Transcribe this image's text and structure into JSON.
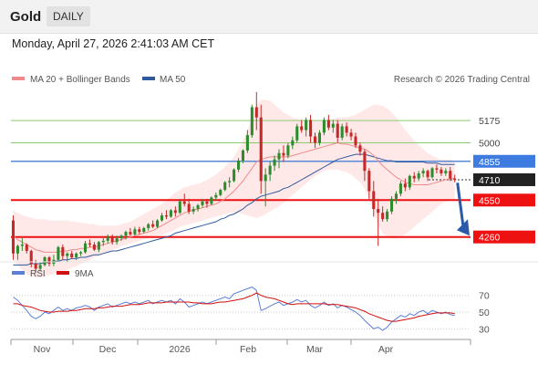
{
  "header": {
    "instrument": "Gold",
    "period": "DAILY"
  },
  "datetime": "Monday, April 27, 2026 2:41:03 AM CET",
  "legend": {
    "ma20": "MA 20 + Bollinger Bands",
    "ma50": "MA 50",
    "rsi": "RSI",
    "ma9": "9MA",
    "credit": "Research © 2026 Trading Central"
  },
  "colors": {
    "ma20": "#f08a8a",
    "ma50": "#2f5a9e",
    "bands": "#fde0e0",
    "up": "#2e8b2e",
    "down": "#c62828",
    "rsi": "#5b7fd6",
    "rsi_ma": "#d01010",
    "target_line": "#8fc96e",
    "support_line": "#ee1111",
    "current_line": "#5a8ad6",
    "arrow": "#2a5aa8"
  },
  "chart_data": {
    "type": "candlestick",
    "x_tick_labels": [
      "Nov",
      "Dec",
      "2026",
      "Feb",
      "Mar",
      "Apr"
    ],
    "price_range": [
      4100,
      5420
    ],
    "levels": [
      {
        "label": "5175",
        "value": 5175,
        "style": "target"
      },
      {
        "label": "5000",
        "value": 5000,
        "style": "target"
      },
      {
        "label": "4855",
        "value": 4855,
        "style": "current"
      },
      {
        "label": "4710",
        "value": 4710,
        "style": "last"
      },
      {
        "label": "4550",
        "value": 4550,
        "style": "support"
      },
      {
        "label": "4260",
        "value": 4260,
        "style": "support"
      }
    ],
    "forecast_arrow": {
      "from": 4700,
      "to": 4270
    },
    "ohlc": [
      [
        4390,
        4430,
        4080,
        4130
      ],
      [
        4130,
        4200,
        4080,
        4190
      ],
      [
        4190,
        4250,
        4150,
        4200
      ],
      [
        4200,
        4210,
        4130,
        4150
      ],
      [
        4150,
        4160,
        4020,
        4050
      ],
      [
        4050,
        4080,
        3980,
        4010
      ],
      [
        4010,
        4060,
        3990,
        4040
      ],
      [
        4040,
        4110,
        4030,
        4100
      ],
      [
        4100,
        4110,
        4030,
        4050
      ],
      [
        4050,
        4120,
        4030,
        4080
      ],
      [
        4080,
        4190,
        4070,
        4180
      ],
      [
        4180,
        4200,
        4080,
        4110
      ],
      [
        4110,
        4140,
        4060,
        4130
      ],
      [
        4130,
        4150,
        4090,
        4100
      ],
      [
        4100,
        4140,
        4080,
        4130
      ],
      [
        4130,
        4150,
        4110,
        4140
      ],
      [
        4140,
        4230,
        4130,
        4210
      ],
      [
        4210,
        4240,
        4180,
        4200
      ],
      [
        4200,
        4220,
        4150,
        4160
      ],
      [
        4160,
        4230,
        4140,
        4220
      ],
      [
        4220,
        4250,
        4190,
        4230
      ],
      [
        4230,
        4280,
        4210,
        4260
      ],
      [
        4260,
        4280,
        4200,
        4220
      ],
      [
        4220,
        4270,
        4200,
        4250
      ],
      [
        4250,
        4280,
        4230,
        4270
      ],
      [
        4270,
        4310,
        4240,
        4300
      ],
      [
        4300,
        4330,
        4270,
        4280
      ],
      [
        4280,
        4340,
        4270,
        4320
      ],
      [
        4320,
        4340,
        4280,
        4300
      ],
      [
        4300,
        4340,
        4290,
        4330
      ],
      [
        4330,
        4370,
        4310,
        4360
      ],
      [
        4360,
        4390,
        4330,
        4340
      ],
      [
        4340,
        4400,
        4330,
        4390
      ],
      [
        4390,
        4450,
        4380,
        4430
      ],
      [
        4430,
        4470,
        4400,
        4420
      ],
      [
        4420,
        4480,
        4410,
        4470
      ],
      [
        4470,
        4500,
        4420,
        4450
      ],
      [
        4450,
        4560,
        4440,
        4540
      ],
      [
        4540,
        4600,
        4500,
        4520
      ],
      [
        4520,
        4560,
        4440,
        4460
      ],
      [
        4460,
        4500,
        4440,
        4480
      ],
      [
        4480,
        4520,
        4460,
        4510
      ],
      [
        4510,
        4560,
        4490,
        4540
      ],
      [
        4540,
        4560,
        4490,
        4520
      ],
      [
        4520,
        4580,
        4510,
        4570
      ],
      [
        4570,
        4610,
        4550,
        4590
      ],
      [
        4590,
        4640,
        4580,
        4630
      ],
      [
        4630,
        4700,
        4620,
        4690
      ],
      [
        4690,
        4730,
        4650,
        4700
      ],
      [
        4700,
        4800,
        4690,
        4790
      ],
      [
        4790,
        4880,
        4770,
        4860
      ],
      [
        4860,
        4950,
        4840,
        4940
      ],
      [
        4940,
        5100,
        4920,
        5060
      ],
      [
        5060,
        5300,
        5040,
        5280
      ],
      [
        5280,
        5400,
        5100,
        5200
      ],
      [
        5200,
        5300,
        4600,
        4700
      ],
      [
        4700,
        4800,
        4500,
        4750
      ],
      [
        4750,
        4850,
        4700,
        4820
      ],
      [
        4820,
        4900,
        4780,
        4870
      ],
      [
        4870,
        4950,
        4800,
        4920
      ],
      [
        4920,
        4980,
        4850,
        4900
      ],
      [
        4900,
        5000,
        4880,
        4980
      ],
      [
        4980,
        5050,
        4950,
        5020
      ],
      [
        5020,
        5150,
        5000,
        5130
      ],
      [
        5130,
        5180,
        5080,
        5100
      ],
      [
        5100,
        5200,
        5050,
        5180
      ],
      [
        5180,
        5220,
        5000,
        5050
      ],
      [
        5050,
        5080,
        4960,
        5000
      ],
      [
        5000,
        5100,
        4980,
        5080
      ],
      [
        5080,
        5200,
        5060,
        5180
      ],
      [
        5180,
        5220,
        5100,
        5120
      ],
      [
        5120,
        5180,
        5080,
        5150
      ],
      [
        5150,
        5180,
        5000,
        5040
      ],
      [
        5040,
        5150,
        5020,
        5130
      ],
      [
        5130,
        5160,
        5050,
        5080
      ],
      [
        5080,
        5110,
        5020,
        5050
      ],
      [
        5050,
        5080,
        4960,
        4980
      ],
      [
        4980,
        5000,
        4900,
        4930
      ],
      [
        4930,
        4950,
        4700,
        4780
      ],
      [
        4780,
        4800,
        4560,
        4620
      ],
      [
        4620,
        4700,
        4420,
        4480
      ],
      [
        4480,
        4560,
        4190,
        4450
      ],
      [
        4450,
        4500,
        4380,
        4400
      ],
      [
        4400,
        4480,
        4380,
        4460
      ],
      [
        4460,
        4580,
        4440,
        4560
      ],
      [
        4560,
        4620,
        4520,
        4600
      ],
      [
        4600,
        4700,
        4580,
        4680
      ],
      [
        4680,
        4720,
        4620,
        4650
      ],
      [
        4650,
        4750,
        4630,
        4740
      ],
      [
        4740,
        4770,
        4690,
        4720
      ],
      [
        4720,
        4780,
        4700,
        4760
      ],
      [
        4760,
        4800,
        4730,
        4780
      ],
      [
        4780,
        4790,
        4700,
        4730
      ],
      [
        4730,
        4810,
        4720,
        4800
      ],
      [
        4800,
        4830,
        4760,
        4790
      ],
      [
        4790,
        4810,
        4740,
        4760
      ],
      [
        4760,
        4800,
        4740,
        4780
      ],
      [
        4780,
        4810,
        4700,
        4720
      ],
      [
        4720,
        4750,
        4690,
        4710
      ]
    ],
    "bb_upper": [
      4470,
      4450,
      4430,
      4420,
      4410,
      4400,
      4400,
      4400,
      4390,
      4390,
      4390,
      4390,
      4390,
      4380,
      4380,
      4370,
      4370,
      4360,
      4360,
      4350,
      4350,
      4350,
      4350,
      4350,
      4360,
      4370,
      4380,
      4400,
      4420,
      4440,
      4460,
      4480,
      4500,
      4520,
      4550,
      4580,
      4610,
      4630,
      4650,
      4660,
      4670,
      4680,
      4690,
      4710,
      4730,
      4750,
      4780,
      4810,
      4850,
      4890,
      4950,
      5020,
      5100,
      5200,
      5300,
      5340,
      5340,
      5330,
      5300,
      5270,
      5240,
      5220,
      5200,
      5190,
      5180,
      5180,
      5170,
      5170,
      5170,
      5170,
      5180,
      5190,
      5200,
      5200,
      5200,
      5210,
      5220,
      5240,
      5260,
      5280,
      5300,
      5300,
      5290,
      5270,
      5240,
      5200,
      5150,
      5100,
      5060,
      5020,
      4980,
      4950,
      4920,
      4900,
      4880,
      4870,
      4870,
      4870,
      4860
    ],
    "bb_lower": [
      4080,
      4040,
      4000,
      3970,
      3950,
      3940,
      3940,
      3950,
      3960,
      3970,
      3980,
      3990,
      4000,
      4020,
      4030,
      4050,
      4060,
      4080,
      4100,
      4110,
      4130,
      4140,
      4160,
      4170,
      4190,
      4200,
      4210,
      4220,
      4230,
      4240,
      4250,
      4260,
      4270,
      4280,
      4290,
      4300,
      4320,
      4340,
      4350,
      4360,
      4370,
      4380,
      4390,
      4400,
      4410,
      4420,
      4430,
      4440,
      4450,
      4450,
      4450,
      4440,
      4430,
      4420,
      4410,
      4420,
      4440,
      4460,
      4480,
      4500,
      4530,
      4560,
      4590,
      4620,
      4650,
      4680,
      4710,
      4740,
      4760,
      4780,
      4790,
      4790,
      4790,
      4780,
      4770,
      4750,
      4720,
      4690,
      4640,
      4560,
      4460,
      4350,
      4290,
      4260,
      4250,
      4250,
      4260,
      4280,
      4310,
      4340,
      4370,
      4400,
      4430,
      4460,
      4490,
      4520,
      4540,
      4550,
      4560
    ],
    "ma20": [
      4270,
      4240,
      4220,
      4200,
      4180,
      4160,
      4150,
      4140,
      4140,
      4140,
      4140,
      4150,
      4150,
      4160,
      4160,
      4170,
      4170,
      4180,
      4180,
      4190,
      4200,
      4210,
      4220,
      4230,
      4240,
      4250,
      4260,
      4270,
      4280,
      4290,
      4300,
      4310,
      4330,
      4350,
      4370,
      4390,
      4410,
      4430,
      4450,
      4460,
      4470,
      4480,
      4490,
      4500,
      4510,
      4520,
      4540,
      4560,
      4590,
      4620,
      4660,
      4700,
      4750,
      4800,
      4850,
      4870,
      4880,
      4890,
      4890,
      4890,
      4890,
      4890,
      4900,
      4910,
      4920,
      4930,
      4940,
      4950,
      4960,
      4970,
      4980,
      4990,
      5000,
      4990,
      4990,
      4980,
      4970,
      4960,
      4950,
      4930,
      4900,
      4860,
      4820,
      4790,
      4760,
      4730,
      4710,
      4690,
      4680,
      4670,
      4670,
      4670,
      4670,
      4680,
      4690,
      4700,
      4710,
      4720,
      4720
    ],
    "ma50": [
      4040,
      4040,
      4040,
      4040,
      4050,
      4050,
      4050,
      4060,
      4060,
      4070,
      4070,
      4080,
      4080,
      4090,
      4090,
      4100,
      4100,
      4110,
      4120,
      4120,
      4130,
      4140,
      4150,
      4150,
      4160,
      4170,
      4180,
      4190,
      4200,
      4210,
      4220,
      4230,
      4240,
      4250,
      4260,
      4270,
      4290,
      4300,
      4310,
      4320,
      4330,
      4340,
      4350,
      4360,
      4370,
      4380,
      4400,
      4410,
      4430,
      4440,
      4460,
      4480,
      4510,
      4530,
      4560,
      4580,
      4590,
      4600,
      4610,
      4620,
      4640,
      4650,
      4670,
      4690,
      4710,
      4730,
      4750,
      4770,
      4790,
      4810,
      4830,
      4850,
      4870,
      4880,
      4890,
      4900,
      4910,
      4910,
      4910,
      4900,
      4890,
      4880,
      4870,
      4860,
      4860,
      4850,
      4850,
      4850,
      4850,
      4850,
      4850,
      4850,
      4840,
      4840,
      4840,
      4830,
      4830,
      4830,
      4830
    ],
    "rsi": {
      "ticks": [
        70,
        50,
        30
      ],
      "range": [
        15,
        85
      ],
      "rsi": [
        68,
        64,
        58,
        52,
        45,
        42,
        45,
        50,
        48,
        52,
        56,
        52,
        54,
        52,
        55,
        56,
        58,
        56,
        52,
        56,
        58,
        60,
        56,
        58,
        60,
        62,
        60,
        62,
        60,
        62,
        64,
        60,
        62,
        64,
        62,
        64,
        60,
        66,
        62,
        56,
        58,
        60,
        62,
        60,
        62,
        64,
        66,
        68,
        66,
        72,
        74,
        76,
        78,
        80,
        76,
        52,
        54,
        57,
        60,
        62,
        58,
        60,
        62,
        65,
        62,
        64,
        58,
        55,
        58,
        62,
        58,
        60,
        55,
        58,
        56,
        53,
        50,
        46,
        40,
        35,
        30,
        32,
        28,
        32,
        38,
        42,
        46,
        44,
        48,
        46,
        50,
        52,
        48,
        52,
        50,
        48,
        50,
        47,
        46
      ],
      "ma9": [
        60,
        60,
        58,
        57,
        56,
        54,
        52,
        51,
        50,
        50,
        51,
        51,
        51,
        52,
        52,
        53,
        54,
        54,
        54,
        55,
        55,
        56,
        57,
        57,
        57,
        58,
        59,
        59,
        59,
        60,
        61,
        61,
        61,
        61,
        62,
        62,
        62,
        62,
        62,
        62,
        61,
        61,
        60,
        60,
        60,
        61,
        62,
        62,
        63,
        64,
        65,
        66,
        68,
        70,
        73,
        70,
        68,
        67,
        66,
        64,
        62,
        60,
        59,
        60,
        60,
        60,
        60,
        60,
        60,
        60,
        59,
        59,
        59,
        58,
        57,
        56,
        55,
        53,
        51,
        48,
        46,
        44,
        42,
        40,
        39,
        39,
        40,
        41,
        42,
        43,
        45,
        46,
        47,
        48,
        49,
        49,
        49,
        49,
        48
      ]
    }
  }
}
